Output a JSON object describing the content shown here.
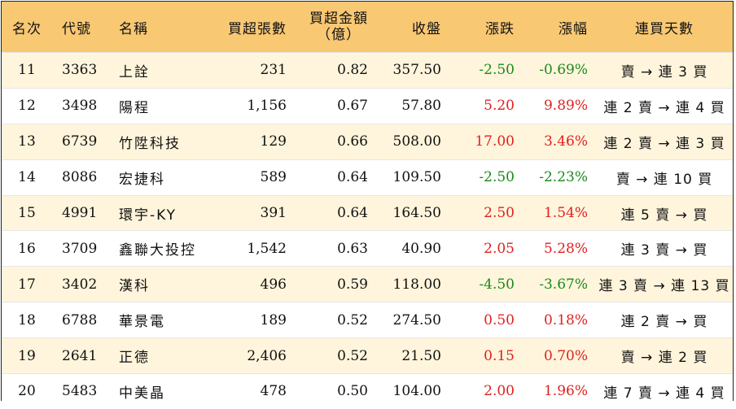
{
  "headers": {
    "rank": "名次",
    "code": "代號",
    "name": "名稱",
    "net_lots": "買超張數",
    "net_amount_line1": "買超金額",
    "net_amount_line2": "（億）",
    "close": "收盤",
    "change": "漲跌",
    "change_pct": "漲幅",
    "streak": "連買天數"
  },
  "rows": [
    {
      "rank": "11",
      "code": "3363",
      "name": "上詮",
      "net_lots": "231",
      "net_amount": "0.82",
      "close": "357.50",
      "change": "-2.50",
      "change_pct": "-0.69%",
      "trend": "down",
      "streak": "賣 → 連 3 買"
    },
    {
      "rank": "12",
      "code": "3498",
      "name": "陽程",
      "net_lots": "1,156",
      "net_amount": "0.67",
      "close": "57.80",
      "change": "5.20",
      "change_pct": "9.89%",
      "trend": "up",
      "streak": "連 2 賣 → 連 4 買"
    },
    {
      "rank": "13",
      "code": "6739",
      "name": "竹陞科技",
      "net_lots": "129",
      "net_amount": "0.66",
      "close": "508.00",
      "change": "17.00",
      "change_pct": "3.46%",
      "trend": "up",
      "streak": "連 2 賣 → 連 3 買"
    },
    {
      "rank": "14",
      "code": "8086",
      "name": "宏捷科",
      "net_lots": "589",
      "net_amount": "0.64",
      "close": "109.50",
      "change": "-2.50",
      "change_pct": "-2.23%",
      "trend": "down",
      "streak": "賣 → 連 10 買"
    },
    {
      "rank": "15",
      "code": "4991",
      "name": "環宇-KY",
      "net_lots": "391",
      "net_amount": "0.64",
      "close": "164.50",
      "change": "2.50",
      "change_pct": "1.54%",
      "trend": "up",
      "streak": "連 5 賣 → 買"
    },
    {
      "rank": "16",
      "code": "3709",
      "name": "鑫聯大投控",
      "net_lots": "1,542",
      "net_amount": "0.63",
      "close": "40.90",
      "change": "2.05",
      "change_pct": "5.28%",
      "trend": "up",
      "streak": "連 3 賣 → 買"
    },
    {
      "rank": "17",
      "code": "3402",
      "name": "漢科",
      "net_lots": "496",
      "net_amount": "0.59",
      "close": "118.00",
      "change": "-4.50",
      "change_pct": "-3.67%",
      "trend": "down",
      "streak": "連 3 賣 → 連 13 買"
    },
    {
      "rank": "18",
      "code": "6788",
      "name": "華景電",
      "net_lots": "189",
      "net_amount": "0.52",
      "close": "274.50",
      "change": "0.50",
      "change_pct": "0.18%",
      "trend": "up",
      "streak": "連 2 賣 → 買"
    },
    {
      "rank": "19",
      "code": "2641",
      "name": "正德",
      "net_lots": "2,406",
      "net_amount": "0.52",
      "close": "21.50",
      "change": "0.15",
      "change_pct": "0.70%",
      "trend": "up",
      "streak": "賣 → 連 2 買"
    },
    {
      "rank": "20",
      "code": "5483",
      "name": "中美晶",
      "net_lots": "478",
      "net_amount": "0.50",
      "close": "104.00",
      "change": "2.00",
      "change_pct": "1.96%",
      "trend": "up",
      "streak": "連 7 賣 → 連 4 買"
    }
  ],
  "colors": {
    "header_bg": "#f8c873",
    "odd_row_bg": "#fff5dc",
    "up": "#e02020",
    "down": "#1a8a1a"
  }
}
